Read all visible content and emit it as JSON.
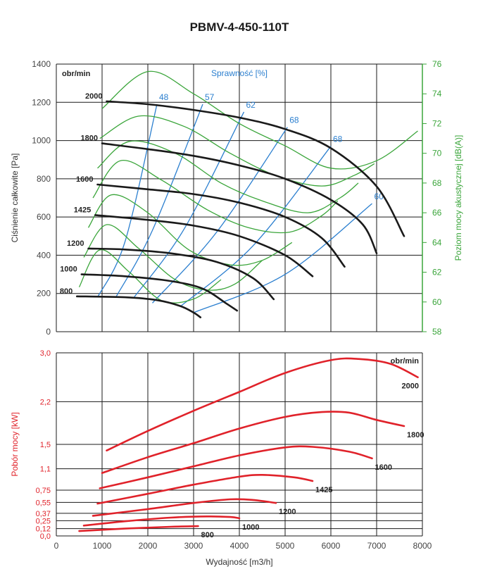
{
  "title": "PBMV-4-450-110T",
  "chart_data": [
    {
      "type": "line",
      "name": "pressure",
      "title": "PBMV-4-450-110T",
      "xlabel": "Wydajność [m3/h]",
      "ylabel": "Ciśnienie całkowite [Pa]",
      "ylabel_right": "Poziom mocy akustycznej [dB(A)]",
      "xlim": [
        0,
        8000
      ],
      "ylim": [
        0,
        1400
      ],
      "ylim_right": [
        58,
        76
      ],
      "x_ticks": [
        0,
        1000,
        2000,
        3000,
        4000,
        5000,
        6000,
        7000,
        8000
      ],
      "y_ticks": [
        0,
        200,
        400,
        600,
        800,
        1000,
        1200,
        1400
      ],
      "y_ticks_right": [
        58,
        60,
        62,
        64,
        66,
        68,
        70,
        72,
        74,
        76
      ],
      "unit_label": "obr/min",
      "efficiency_title": "Sprawność [%]",
      "series": [
        {
          "name": "2000",
          "points": [
            [
              1100,
              1205
            ],
            [
              2000,
              1190
            ],
            [
              3000,
              1160
            ],
            [
              4000,
              1120
            ],
            [
              5000,
              1060
            ],
            [
              6000,
              960
            ],
            [
              7000,
              760
            ],
            [
              7600,
              500
            ]
          ]
        },
        {
          "name": "1800",
          "points": [
            [
              1000,
              985
            ],
            [
              2000,
              955
            ],
            [
              3000,
              920
            ],
            [
              4000,
              870
            ],
            [
              5000,
              800
            ],
            [
              6000,
              690
            ],
            [
              6700,
              560
            ],
            [
              7000,
              410
            ]
          ]
        },
        {
          "name": "1600",
          "points": [
            [
              900,
              770
            ],
            [
              2000,
              745
            ],
            [
              3000,
              720
            ],
            [
              4000,
              675
            ],
            [
              5000,
              600
            ],
            [
              5800,
              490
            ],
            [
              6300,
              340
            ]
          ]
        },
        {
          "name": "1425",
          "points": [
            [
              850,
              610
            ],
            [
              2000,
              585
            ],
            [
              3000,
              555
            ],
            [
              4000,
              500
            ],
            [
              5000,
              400
            ],
            [
              5600,
              290
            ]
          ]
        },
        {
          "name": "1200",
          "points": [
            [
              700,
              435
            ],
            [
              1500,
              430
            ],
            [
              2500,
              410
            ],
            [
              3500,
              365
            ],
            [
              4300,
              280
            ],
            [
              4750,
              170
            ]
          ]
        },
        {
          "name": "1000",
          "points": [
            [
              550,
              300
            ],
            [
              1500,
              290
            ],
            [
              2500,
              265
            ],
            [
              3200,
              225
            ],
            [
              3700,
              150
            ],
            [
              3950,
              110
            ]
          ]
        },
        {
          "name": "800",
          "points": [
            [
              450,
              185
            ],
            [
              1500,
              180
            ],
            [
              2200,
              165
            ],
            [
              2700,
              135
            ],
            [
              3000,
              100
            ],
            [
              3150,
              75
            ]
          ]
        }
      ],
      "efficiency_lines": [
        {
          "name": "48",
          "points": [
            [
              900,
              180
            ],
            [
              1500,
              470
            ],
            [
              2200,
              1190
            ]
          ]
        },
        {
          "name": "57",
          "points": [
            [
              1300,
              180
            ],
            [
              2100,
              530
            ],
            [
              3200,
              1190
            ]
          ]
        },
        {
          "name": "62",
          "points": [
            [
              1700,
              180
            ],
            [
              2800,
              540
            ],
            [
              4100,
              1150
            ]
          ]
        },
        {
          "name": "68",
          "points": [
            [
              2100,
              150
            ],
            [
              3500,
              520
            ],
            [
              5050,
              1070
            ]
          ]
        },
        {
          "name": "68",
          "points": [
            [
              2700,
              130
            ],
            [
              4300,
              450
            ],
            [
              6000,
              970
            ]
          ]
        },
        {
          "name": "60",
          "points": [
            [
              3000,
              100
            ],
            [
              5000,
              300
            ],
            [
              6900,
              670
            ]
          ]
        }
      ],
      "sound_lines": [
        {
          "name": "2000",
          "points": [
            [
              1000,
              73
            ],
            [
              2000,
              75.5
            ],
            [
              3000,
              74
            ],
            [
              4000,
              72
            ],
            [
              5000,
              70.5
            ],
            [
              6000,
              69
            ],
            [
              7000,
              69.5
            ],
            [
              7900,
              71.5
            ]
          ]
        },
        {
          "name": "1800",
          "points": [
            [
              950,
              71
            ],
            [
              1800,
              72.5
            ],
            [
              2800,
              71.8
            ],
            [
              3800,
              70
            ],
            [
              4800,
              68.5
            ],
            [
              5800,
              67.8
            ],
            [
              6500,
              68.5
            ],
            [
              6950,
              69.3
            ]
          ]
        },
        {
          "name": "1600",
          "points": [
            [
              900,
              69
            ],
            [
              1600,
              70.8
            ],
            [
              2600,
              70
            ],
            [
              3600,
              68
            ],
            [
              4500,
              66.8
            ],
            [
              5500,
              66
            ],
            [
              6200,
              67
            ],
            [
              6600,
              68
            ]
          ]
        },
        {
          "name": "1425",
          "points": [
            [
              800,
              67
            ],
            [
              1400,
              69.5
            ],
            [
              2300,
              68.2
            ],
            [
              3300,
              66.2
            ],
            [
              4200,
              65
            ],
            [
              5100,
              64.7
            ],
            [
              5800,
              65.8
            ],
            [
              6150,
              66.8
            ]
          ]
        },
        {
          "name": "1200",
          "points": [
            [
              700,
              65
            ],
            [
              1200,
              67.2
            ],
            [
              2000,
              66
            ],
            [
              2900,
              63.5
            ],
            [
              3800,
              62.5
            ],
            [
              4500,
              62.8
            ],
            [
              5150,
              64
            ]
          ]
        },
        {
          "name": "1000",
          "points": [
            [
              600,
              63
            ],
            [
              1100,
              65.2
            ],
            [
              1800,
              63.6
            ],
            [
              2600,
              61.5
            ],
            [
              3300,
              60.8
            ],
            [
              3900,
              61.2
            ],
            [
              4500,
              62.8
            ]
          ]
        },
        {
          "name": "800",
          "points": [
            [
              500,
              61
            ],
            [
              950,
              63.5
            ],
            [
              1600,
              62
            ],
            [
              2300,
              60.1
            ],
            [
              3000,
              60.2
            ],
            [
              3600,
              61.5
            ]
          ]
        }
      ],
      "colors": {
        "curve": "#1a1a1a",
        "efficiency": "#2b7fcf",
        "sound": "#3aa53a"
      }
    },
    {
      "type": "line",
      "name": "power",
      "xlabel": "Wydajność [m3/h]",
      "ylabel": "Pobór mocy [kW]",
      "xlim": [
        0,
        8000
      ],
      "ylim": [
        0,
        3.0
      ],
      "x_ticks": [
        0,
        1000,
        2000,
        3000,
        4000,
        5000,
        6000,
        7000,
        8000
      ],
      "y_ticks": [
        "0,0",
        "0,12",
        "0,25",
        "0,37",
        "0,55",
        "0,75",
        "1,1",
        "1,5",
        "2,2",
        "3,0"
      ],
      "unit_label": "obr/min",
      "series": [
        {
          "name": "2000",
          "points": [
            [
              1100,
              1.4
            ],
            [
              2000,
              1.72
            ],
            [
              3000,
              2.05
            ],
            [
              4000,
              2.36
            ],
            [
              5000,
              2.67
            ],
            [
              6000,
              2.88
            ],
            [
              6600,
              2.9
            ],
            [
              7300,
              2.82
            ],
            [
              7900,
              2.6
            ]
          ]
        },
        {
          "name": "1800",
          "points": [
            [
              1000,
              1.03
            ],
            [
              2000,
              1.29
            ],
            [
              3000,
              1.52
            ],
            [
              4000,
              1.76
            ],
            [
              5000,
              1.95
            ],
            [
              5800,
              2.03
            ],
            [
              6400,
              2.02
            ],
            [
              7000,
              1.9
            ],
            [
              7600,
              1.8
            ]
          ]
        },
        {
          "name": "1600",
          "points": [
            [
              950,
              0.78
            ],
            [
              2000,
              0.96
            ],
            [
              3000,
              1.14
            ],
            [
              4000,
              1.32
            ],
            [
              5000,
              1.45
            ],
            [
              5600,
              1.46
            ],
            [
              6400,
              1.38
            ],
            [
              6900,
              1.27
            ]
          ]
        },
        {
          "name": "1425",
          "points": [
            [
              900,
              0.53
            ],
            [
              2000,
              0.69
            ],
            [
              3000,
              0.84
            ],
            [
              4000,
              0.97
            ],
            [
              4500,
              1.0
            ],
            [
              5200,
              0.96
            ],
            [
              5600,
              0.9
            ]
          ]
        },
        {
          "name": "1200",
          "points": [
            [
              800,
              0.33
            ],
            [
              2000,
              0.44
            ],
            [
              3000,
              0.54
            ],
            [
              3800,
              0.6
            ],
            [
              4300,
              0.59
            ],
            [
              4800,
              0.54
            ]
          ]
        },
        {
          "name": "1000",
          "points": [
            [
              600,
              0.17
            ],
            [
              1500,
              0.24
            ],
            [
              2500,
              0.3
            ],
            [
              3300,
              0.32
            ],
            [
              3800,
              0.31
            ],
            [
              4000,
              0.29
            ]
          ]
        },
        {
          "name": "800",
          "points": [
            [
              500,
              0.08
            ],
            [
              1500,
              0.12
            ],
            [
              2500,
              0.15
            ],
            [
              3100,
              0.16
            ]
          ]
        }
      ],
      "colors": {
        "curve": "#e0222a"
      }
    }
  ]
}
